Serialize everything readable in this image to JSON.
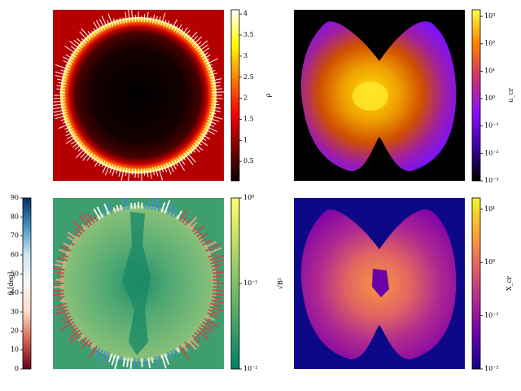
{
  "chart_data": [
    {
      "type": "image",
      "colorbars": [
        {
          "side": "right",
          "label": "ρ",
          "scale": "linear",
          "ylim": [
            0.04,
            4.1
          ],
          "yticks": [
            0.5,
            1.0,
            1.5,
            2.0,
            2.5,
            3.0,
            3.5,
            4.0
          ],
          "colors": [
            "#0a0000",
            "#800000",
            "#ff0000",
            "#ff8000",
            "#ffff00",
            "#ffffff"
          ]
        }
      ]
    },
    {
      "type": "image",
      "colorbars": [
        {
          "side": "right",
          "label": "u_cr",
          "scale": "log",
          "ylim": [
            0.001,
            1738
          ],
          "yticks": [
            {
              "value": 0.001,
              "label": "10⁻³"
            },
            {
              "value": 0.01,
              "label": "10⁻²"
            },
            {
              "value": 0.1,
              "label": "10⁻¹"
            },
            {
              "value": 1,
              "label": "10⁰"
            },
            {
              "value": 10,
              "label": "10¹"
            },
            {
              "value": 100,
              "label": "10²"
            },
            {
              "value": 1000,
              "label": "10³"
            }
          ],
          "colors": [
            "#000000",
            "#3a00a0",
            "#8a10ff",
            "#d03070",
            "#ff8000",
            "#ffff40"
          ]
        }
      ]
    },
    {
      "type": "image",
      "colorbars": [
        {
          "side": "left",
          "label": "θ [deg]",
          "scale": "linear",
          "ylim": [
            0,
            90
          ],
          "yticks": [
            0,
            10,
            20,
            30,
            40,
            50,
            60,
            70,
            80,
            90
          ],
          "colors": [
            "#67001f",
            "#d6604d",
            "#fddbc7",
            "#f7f7f7",
            "#d1e5f0",
            "#4393c3",
            "#053061"
          ]
        },
        {
          "side": "right",
          "label": "√B²",
          "scale": "log",
          "ylim": [
            0.01,
            1
          ],
          "yticks": [
            {
              "value": 0.01,
              "label": "10⁻²"
            },
            {
              "value": 0.1,
              "label": "10⁻¹"
            },
            {
              "value": 1,
              "label": "10⁰"
            }
          ],
          "colors": [
            "#008066",
            "#80c066",
            "#ffff66"
          ]
        }
      ]
    },
    {
      "type": "image",
      "colorbars": [
        {
          "side": "right",
          "label": "X_cr",
          "scale": "log",
          "ylim": [
            0.01,
            16.3
          ],
          "yticks": [
            {
              "value": 0.01,
              "label": "10⁻²"
            },
            {
              "value": 0.1,
              "label": "10⁻¹"
            },
            {
              "value": 1,
              "label": "10⁰"
            },
            {
              "value": 10,
              "label": "10¹"
            }
          ],
          "colors": [
            "#0d0887",
            "#6a00a8",
            "#b12a90",
            "#e16462",
            "#fca636",
            "#f0f921"
          ]
        }
      ]
    }
  ]
}
